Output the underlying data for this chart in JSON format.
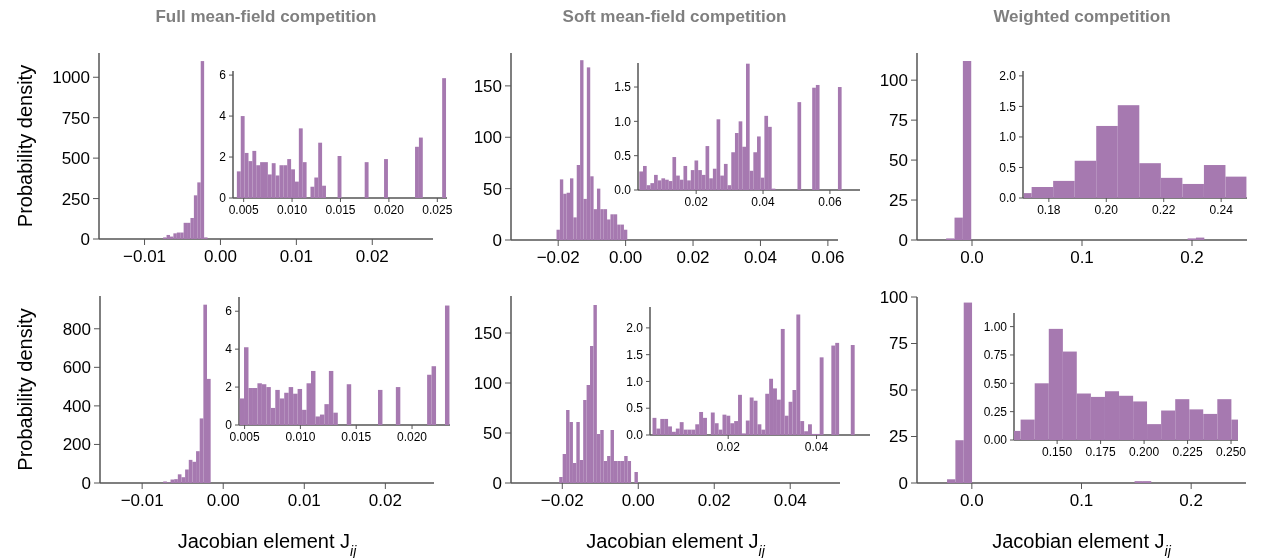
{
  "chart_data": [
    {
      "type": "histogram",
      "title": "Full mean-field competition",
      "ylabel": "Probability density",
      "color": "#a679b0",
      "bins": [
        -0.00755,
        -0.0071,
        -0.00665,
        -0.0062,
        -0.00575,
        -0.0053,
        -0.00485,
        -0.0044,
        -0.00395,
        -0.0035,
        -0.00305,
        -0.0026,
        -0.00215,
        -0.0017
      ],
      "values": [
        10,
        25,
        15,
        35,
        40,
        40,
        100,
        100,
        130,
        270,
        350,
        1100,
        10
      ],
      "xlim": [
        -0.016,
        0.028
      ],
      "ylim": [
        0,
        1150
      ],
      "xticks": [
        {
          "value": -0.01,
          "label": "−0.01"
        },
        {
          "value": 0,
          "label": "0.00"
        },
        {
          "value": 0.01,
          "label": "0.01"
        },
        {
          "value": 0.02,
          "label": "0.02"
        }
      ],
      "yticks": [
        0,
        250,
        500,
        750,
        1000
      ]
    },
    {
      "type": "histogram",
      "color": "#a679b0",
      "bins": [
        0.0043,
        0.0047,
        0.0051,
        0.0055,
        0.0059,
        0.0063,
        0.0067,
        0.0071,
        0.0075,
        0.0079,
        0.0083,
        0.0087,
        0.0091,
        0.0095,
        0.0099,
        0.0103,
        0.0107,
        0.0111,
        0.0115,
        0.0119,
        0.0123,
        0.0127,
        0.0131,
        0.0135,
        0.0139,
        0.0143,
        0.0147,
        0.0151,
        0.0155,
        0.0159,
        0.0163,
        0.0167,
        0.0171,
        0.0175,
        0.0179,
        0.0183,
        0.0187,
        0.0191,
        0.0195,
        0.0199,
        0.0203,
        0.0207,
        0.0211,
        0.0215,
        0.0219,
        0.0223,
        0.0227,
        0.0231,
        0.0235,
        0.0239,
        0.0243,
        0.0247,
        0.0251,
        0.0255,
        0.0259
      ],
      "values": [
        1.3,
        4.0,
        2.2,
        1.8,
        2.3,
        1.6,
        1.75,
        1.75,
        1.15,
        1.7,
        1.1,
        1.6,
        1.6,
        1.9,
        1.4,
        0.8,
        3.4,
        1.75,
        0,
        0.55,
        1.0,
        2.7,
        0.6,
        0,
        0,
        0,
        2.05,
        0,
        0,
        0,
        0,
        0,
        0,
        1.75,
        0,
        0,
        0,
        0,
        1.9,
        0,
        0,
        0,
        0,
        0,
        0,
        0,
        2.5,
        2.95,
        0,
        0,
        0,
        0,
        0,
        5.85
      ],
      "xlim": [
        0.0039,
        0.026
      ],
      "ylim": [
        0,
        6.2
      ],
      "xticks": [
        {
          "value": 0.005,
          "label": "0.005"
        },
        {
          "value": 0.01,
          "label": "0.010"
        },
        {
          "value": 0.015,
          "label": "0.015"
        },
        {
          "value": 0.02,
          "label": "0.020"
        },
        {
          "value": 0.025,
          "label": "0.025"
        }
      ],
      "yticks": [
        0,
        2,
        4,
        6
      ]
    },
    {
      "type": "histogram",
      "title": "Soft mean-field competition",
      "color": "#a679b0",
      "bins": [
        -0.0205,
        -0.0195,
        -0.0185,
        -0.0175,
        -0.0165,
        -0.0155,
        -0.0145,
        -0.0135,
        -0.0125,
        -0.0115,
        -0.0105,
        -0.0095,
        -0.0085,
        -0.0075,
        -0.0065,
        -0.0055,
        -0.0045,
        -0.0035,
        -0.0025,
        -0.0015,
        -0.0005,
        0.0005
      ],
      "values": [
        10,
        59,
        45,
        46,
        60,
        22,
        73,
        175,
        40,
        168,
        62,
        30,
        50,
        30,
        30,
        20,
        25,
        25,
        15,
        15,
        10
      ],
      "xlim": [
        -0.034,
        0.063
      ],
      "ylim": [
        0,
        182
      ],
      "xticks": [
        {
          "value": -0.02,
          "label": "−0.02"
        },
        {
          "value": 0,
          "label": "0.00"
        },
        {
          "value": 0.02,
          "label": "0.02"
        },
        {
          "value": 0.04,
          "label": "0.04"
        },
        {
          "value": 0.06,
          "label": "0.06"
        }
      ],
      "yticks": [
        0,
        50,
        100,
        150
      ]
    },
    {
      "type": "histogram",
      "color": "#a679b0",
      "bins": [
        0.003,
        0.0041,
        0.0052,
        0.0063,
        0.0074,
        0.0085,
        0.0096,
        0.0107,
        0.0118,
        0.0129,
        0.014,
        0.0151,
        0.0162,
        0.0173,
        0.0184,
        0.0195,
        0.0206,
        0.0217,
        0.0228,
        0.0239,
        0.025,
        0.0261,
        0.0272,
        0.0283,
        0.0294,
        0.0305,
        0.0316,
        0.0327,
        0.0338,
        0.0349,
        0.036,
        0.0371,
        0.0382,
        0.0393,
        0.0404,
        0.0415,
        0.0426,
        0.0437,
        0.0448,
        0.0459,
        0.047,
        0.0481,
        0.0492,
        0.0503,
        0.0514,
        0.0525,
        0.0536,
        0.0547,
        0.0558,
        0.0569,
        0.058,
        0.0591,
        0.0602,
        0.0613,
        0.0624,
        0.0635
      ],
      "values": [
        0.27,
        0.35,
        0.07,
        0.1,
        0.22,
        0.14,
        0.17,
        0.15,
        0.13,
        0.48,
        0.21,
        0.15,
        0.35,
        0.14,
        0.29,
        0.43,
        0.29,
        0.22,
        0.64,
        0.17,
        0.31,
        1.03,
        0.21,
        0.38,
        0.07,
        0.55,
        0.83,
        1.0,
        0.63,
        1.84,
        0.28,
        0.55,
        0.78,
        0.18,
        1.08,
        0.92,
        0.02,
        0,
        0,
        0,
        0,
        0,
        0,
        1.28,
        0,
        0,
        0,
        1.49,
        1.53,
        0,
        0,
        0,
        0,
        0,
        1.5
      ],
      "xlim": [
        0.0026,
        0.069
      ],
      "ylim": [
        0,
        1.85
      ],
      "xticks": [
        0.02,
        0.04,
        0.06
      ],
      "yticks": [
        {
          "value": 0,
          "label": "0.0"
        },
        {
          "value": 0.5,
          "label": "0.5"
        },
        {
          "value": 1,
          "label": "1.0"
        },
        {
          "value": 1.5,
          "label": "1.5"
        }
      ]
    },
    {
      "type": "histogram",
      "title": "Weighted competition",
      "color": "#a679b0",
      "bins": [
        -0.0235,
        -0.0159,
        -0.0083,
        -0.0007,
        0.196,
        0.2036,
        0.2112
      ],
      "values": [
        1,
        14,
        112,
        0,
        1,
        1.5
      ],
      "xlim": [
        -0.05,
        0.25
      ],
      "ylim": [
        0,
        117
      ],
      "xticks": [
        {
          "value": 0,
          "label": "0.0"
        },
        0.1,
        0.2
      ],
      "yticks": [
        0,
        25,
        50,
        75,
        100
      ]
    },
    {
      "type": "histogram",
      "color": "#a679b0",
      "bins": [
        0.1713,
        0.174,
        0.1815,
        0.189,
        0.1965,
        0.204,
        0.2115,
        0.219,
        0.2265,
        0.234,
        0.2415,
        0.2488
      ],
      "values": [
        0.08,
        0.18,
        0.28,
        0.61,
        1.18,
        1.52,
        0.57,
        0.33,
        0.23,
        0.54,
        0.35
      ],
      "xlim": [
        0.171,
        0.249
      ],
      "ylim": [
        0,
        2.08
      ],
      "xticks": [
        0.18,
        {
          "value": 0.2,
          "label": "0.20"
        },
        0.22,
        0.24
      ],
      "yticks": [
        {
          "value": 0,
          "label": "0.0"
        },
        {
          "value": 0.5,
          "label": "0.5"
        },
        {
          "value": 1,
          "label": "1.0"
        },
        {
          "value": 1.5,
          "label": "1.5"
        },
        {
          "value": 2,
          "label": "2.0"
        }
      ]
    },
    {
      "type": "histogram",
      "ylabel": "Probability density",
      "xlabel": "Jacobian element J$_{ij}$",
      "color": "#a679b0",
      "bins": [
        -0.0074,
        -0.00695,
        -0.0065,
        -0.00605,
        -0.0056,
        -0.00515,
        -0.0047,
        -0.00425,
        -0.0038,
        -0.00335,
        -0.0029,
        -0.00245,
        -0.002,
        -0.00155
      ],
      "values": [
        8,
        3,
        18,
        20,
        45,
        30,
        70,
        120,
        110,
        165,
        335,
        925,
        540
      ],
      "xlim": [
        -0.0152,
        0.026
      ],
      "ylim": [
        0,
        970
      ],
      "xticks": [
        {
          "value": -0.01,
          "label": "−0.01"
        },
        {
          "value": 0,
          "label": "0.00"
        },
        {
          "value": 0.01,
          "label": "0.01"
        },
        {
          "value": 0.02,
          "label": "0.02"
        }
      ],
      "yticks": [
        0,
        200,
        400,
        600,
        800
      ]
    },
    {
      "type": "histogram",
      "color": "#a679b0",
      "bins": [
        0.00455,
        0.00495,
        0.00535,
        0.00575,
        0.00615,
        0.00655,
        0.00695,
        0.00735,
        0.00775,
        0.00815,
        0.00855,
        0.00895,
        0.00935,
        0.00975,
        0.01015,
        0.01055,
        0.01095,
        0.01135,
        0.01175,
        0.01215,
        0.01255,
        0.01295,
        0.01335,
        0.01375,
        0.01415,
        0.01455,
        0.01495,
        0.01535,
        0.01575,
        0.01615,
        0.01655,
        0.01695,
        0.01735,
        0.01775,
        0.01815,
        0.01855,
        0.01895,
        0.01935,
        0.01975,
        0.02015,
        0.02055,
        0.02095,
        0.02135,
        0.02175,
        0.02215,
        0.02255,
        0.02295,
        0.02335
      ],
      "values": [
        1.4,
        4.1,
        1.95,
        1.95,
        2.2,
        2.15,
        2.0,
        0.9,
        1.85,
        1.4,
        1.7,
        2.0,
        1.65,
        1.9,
        0.8,
        2.2,
        2.85,
        0.45,
        0.55,
        1.1,
        2.85,
        0.65,
        0,
        0,
        2.15,
        0,
        0,
        0,
        0,
        0,
        0,
        1.85,
        0,
        0,
        0,
        2.0,
        0,
        0,
        0,
        0,
        0,
        0,
        2.65,
        3.1,
        0,
        0,
        6.3
      ],
      "xlim": [
        0.0045,
        0.0234
      ],
      "ylim": [
        0,
        6.75
      ],
      "xticks": [
        {
          "value": 0.005,
          "label": "0.005"
        },
        {
          "value": 0.01,
          "label": "0.010"
        },
        {
          "value": 0.015,
          "label": "0.015"
        },
        {
          "value": 0.02,
          "label": "0.020"
        }
      ],
      "yticks": [
        0,
        2,
        4,
        6
      ]
    },
    {
      "type": "histogram",
      "xlabel": "Jacobian element J$_{ij}$",
      "color": "#a679b0",
      "bins": [
        -0.0208,
        -0.0199,
        -0.019,
        -0.0181,
        -0.0172,
        -0.0163,
        -0.0154,
        -0.0145,
        -0.0136,
        -0.0127,
        -0.0118,
        -0.0109,
        -0.01,
        -0.0091,
        -0.0082,
        -0.0073,
        -0.0064,
        -0.0055,
        -0.0046,
        -0.0037,
        -0.0028,
        -0.0019,
        -0.001,
        -0.0001
      ],
      "values": [
        6,
        29,
        73,
        61,
        20,
        61,
        23,
        83,
        98,
        137,
        178,
        49,
        53,
        22,
        27,
        53,
        22,
        22,
        22,
        27,
        22,
        0,
        11
      ],
      "xlim": [
        -0.0335,
        0.0531
      ],
      "ylim": [
        0,
        187
      ],
      "xticks": [
        {
          "value": -0.02,
          "label": "−0.02"
        },
        {
          "value": 0,
          "label": "0.00"
        },
        {
          "value": 0.02,
          "label": "0.02"
        },
        {
          "value": 0.04,
          "label": "0.04"
        }
      ],
      "yticks": [
        0,
        50,
        100,
        150
      ]
    },
    {
      "type": "histogram",
      "color": "#a679b0",
      "bins": [
        0.00287,
        0.00375,
        0.00463,
        0.00551,
        0.00639,
        0.00727,
        0.00815,
        0.00903,
        0.00991,
        0.01079,
        0.01167,
        0.01255,
        0.01343,
        0.01431,
        0.01519,
        0.01607,
        0.01695,
        0.01783,
        0.01871,
        0.01959,
        0.02047,
        0.02135,
        0.02223,
        0.02311,
        0.02399,
        0.02487,
        0.02575,
        0.02663,
        0.02751,
        0.02839,
        0.02927,
        0.03015,
        0.03103,
        0.03191,
        0.03279,
        0.03367,
        0.03455,
        0.03543,
        0.03631,
        0.03719,
        0.03807,
        0.03895,
        0.03983,
        0.04071,
        0.04159,
        0.04247,
        0.04335,
        0.04423,
        0.04511,
        0.04599,
        0.04687,
        0.04775,
        0.04863
      ],
      "values": [
        0.32,
        0.12,
        0.3,
        0.3,
        0.16,
        0.06,
        0.12,
        0.24,
        0.1,
        0.1,
        0.1,
        0.2,
        0.43,
        0.32,
        0,
        0.42,
        0.22,
        0.1,
        0.38,
        0.36,
        0.22,
        0.26,
        0.75,
        0.03,
        0.27,
        0.7,
        0.64,
        0.2,
        0.1,
        0.77,
        1.05,
        0.87,
        0.66,
        1.98,
        0.36,
        0.62,
        0.84,
        2.25,
        0.26,
        0.07,
        0.2,
        0.02,
        0.02,
        1.45,
        0,
        0,
        1.67,
        1.72,
        0,
        0,
        0,
        1.68
      ],
      "xlim": [
        0.0023,
        0.0521
      ],
      "ylim": [
        0,
        2.39
      ],
      "xticks": [
        0.02,
        0.04
      ],
      "yticks": [
        {
          "value": 0,
          "label": "0.0"
        },
        {
          "value": 0.5,
          "label": "0.5"
        },
        {
          "value": 1,
          "label": "1.0"
        },
        {
          "value": 1.5,
          "label": "1.5"
        },
        {
          "value": 2,
          "label": "2.0"
        }
      ]
    },
    {
      "type": "histogram",
      "xlabel": "Jacobian element J$_{ij}$",
      "color": "#a679b0",
      "bins": [
        -0.0226,
        -0.015,
        -0.0074,
        0.0002,
        0.1484,
        0.156,
        0.1636
      ],
      "values": [
        2,
        23,
        97,
        0,
        1,
        1
      ],
      "xlim": [
        -0.05,
        0.25
      ],
      "ylim": [
        0,
        100
      ],
      "xticks": [
        {
          "value": 0,
          "label": "0.0"
        },
        0.1,
        0.2
      ],
      "yticks": [
        0,
        25,
        50,
        75,
        100
      ]
    },
    {
      "type": "histogram",
      "color": "#a679b0",
      "bins": [
        0.1252,
        0.129,
        0.1371,
        0.1452,
        0.1533,
        0.1613,
        0.1694,
        0.1775,
        0.1856,
        0.1937,
        0.2017,
        0.2098,
        0.2179,
        0.226,
        0.234,
        0.2421,
        0.2502,
        0.254
      ],
      "values": [
        0.08,
        0.18,
        0.5,
        0.98,
        0.78,
        0.41,
        0.38,
        0.43,
        0.39,
        0.34,
        0.14,
        0.26,
        0.36,
        0.27,
        0.23,
        0.36,
        0.18
      ],
      "xlim": [
        0.1252,
        0.254
      ],
      "ylim": [
        0,
        1.12
      ],
      "xticks": [
        {
          "value": 0.15,
          "label": "0.150"
        },
        0.175,
        {
          "value": 0.2,
          "label": "0.200"
        },
        0.225,
        {
          "value": 0.25,
          "label": "0.250"
        }
      ],
      "yticks": [
        {
          "value": 0,
          "label": "0.00"
        },
        {
          "value": 0.25,
          "label": "0.25"
        },
        {
          "value": 0.5,
          "label": "0.50"
        },
        {
          "value": 0.75,
          "label": "0.75"
        },
        {
          "value": 1,
          "label": "1.00"
        }
      ]
    }
  ]
}
